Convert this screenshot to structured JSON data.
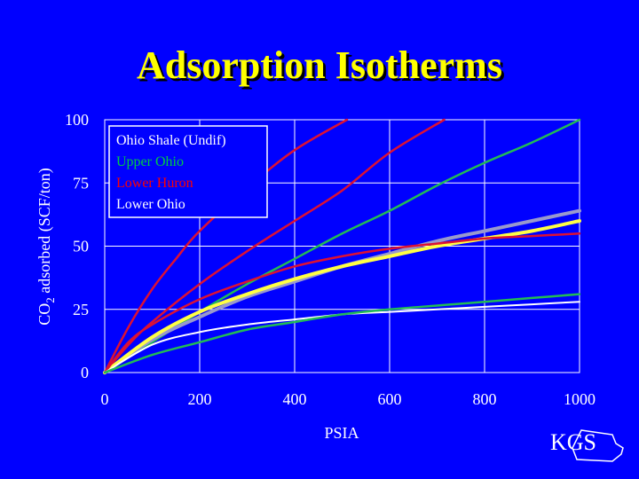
{
  "title": "Adsorption Isotherms",
  "logo_text": "KGS",
  "colors": {
    "background": "#0000ff",
    "title": "#ffff00",
    "grid": "#ffffff",
    "text": "#ffffff"
  },
  "chart_data": {
    "type": "line",
    "xlabel": "PSIA",
    "ylabel_main": "CO",
    "ylabel_sub": "2",
    "ylabel_rest": " adsorbed (SCF/ton)",
    "xlim": [
      0,
      1000
    ],
    "ylim": [
      0,
      100
    ],
    "xticks": [
      "0",
      "200",
      "400",
      "600",
      "800",
      "1000"
    ],
    "yticks": [
      "0",
      "25",
      "50",
      "75",
      "100"
    ],
    "grid": true,
    "legend_position": "top-left",
    "legend": [
      {
        "name": "Ohio Shale (Undif)",
        "color": "#ffffff"
      },
      {
        "name": "Upper Ohio",
        "color": "#00cc44"
      },
      {
        "name": "Lower Huron",
        "color": "#ff0000"
      },
      {
        "name": "Lower Ohio",
        "color": "#ffffff"
      }
    ],
    "series": [
      {
        "color": "#dd1133",
        "width": 2.5,
        "points": [
          [
            0,
            0
          ],
          [
            50,
            18
          ],
          [
            100,
            33
          ],
          [
            150,
            45
          ],
          [
            200,
            56
          ],
          [
            300,
            73
          ],
          [
            400,
            88
          ],
          [
            510,
            100
          ]
        ]
      },
      {
        "color": "#dd1133",
        "width": 2.5,
        "points": [
          [
            0,
            0
          ],
          [
            50,
            11
          ],
          [
            100,
            20
          ],
          [
            200,
            35
          ],
          [
            300,
            48
          ],
          [
            400,
            60
          ],
          [
            500,
            72
          ],
          [
            600,
            87
          ],
          [
            715,
            100
          ]
        ]
      },
      {
        "color": "#22bb55",
        "width": 2.5,
        "points": [
          [
            0,
            0
          ],
          [
            100,
            12
          ],
          [
            200,
            24
          ],
          [
            300,
            35
          ],
          [
            400,
            45
          ],
          [
            500,
            55
          ],
          [
            600,
            64
          ],
          [
            700,
            74
          ],
          [
            800,
            83
          ],
          [
            900,
            91
          ],
          [
            1000,
            100
          ]
        ]
      },
      {
        "color": "#9999cc",
        "width": 4,
        "points": [
          [
            0,
            0
          ],
          [
            100,
            13
          ],
          [
            200,
            22
          ],
          [
            300,
            30
          ],
          [
            400,
            36
          ],
          [
            500,
            42
          ],
          [
            600,
            47
          ],
          [
            700,
            52
          ],
          [
            800,
            56
          ],
          [
            900,
            60
          ],
          [
            1000,
            64
          ]
        ]
      },
      {
        "color": "#ffff44",
        "width": 4,
        "points": [
          [
            0,
            0
          ],
          [
            100,
            14
          ],
          [
            200,
            24
          ],
          [
            300,
            31
          ],
          [
            400,
            37
          ],
          [
            500,
            42
          ],
          [
            600,
            46
          ],
          [
            700,
            50
          ],
          [
            800,
            53
          ],
          [
            900,
            56
          ],
          [
            1000,
            60
          ]
        ]
      },
      {
        "color": "#dd1133",
        "width": 2.5,
        "points": [
          [
            0,
            0
          ],
          [
            50,
            12
          ],
          [
            100,
            19
          ],
          [
            200,
            29
          ],
          [
            300,
            36
          ],
          [
            400,
            42
          ],
          [
            500,
            46
          ],
          [
            600,
            49
          ],
          [
            700,
            51
          ],
          [
            800,
            53
          ],
          [
            900,
            54
          ],
          [
            1000,
            55
          ]
        ]
      },
      {
        "color": "#ffffff",
        "width": 2,
        "points": [
          [
            0,
            0
          ],
          [
            100,
            11
          ],
          [
            200,
            16
          ],
          [
            300,
            19
          ],
          [
            400,
            21
          ],
          [
            500,
            23
          ],
          [
            600,
            24
          ],
          [
            700,
            25
          ],
          [
            800,
            26
          ],
          [
            900,
            27
          ],
          [
            1000,
            28
          ]
        ]
      },
      {
        "color": "#22bb55",
        "width": 2.5,
        "points": [
          [
            0,
            0
          ],
          [
            100,
            7
          ],
          [
            200,
            12
          ],
          [
            300,
            17
          ],
          [
            400,
            20
          ],
          [
            500,
            23
          ],
          [
            600,
            25
          ],
          [
            700,
            26.5
          ],
          [
            800,
            28
          ],
          [
            900,
            29.5
          ],
          [
            1000,
            31
          ]
        ]
      }
    ]
  }
}
